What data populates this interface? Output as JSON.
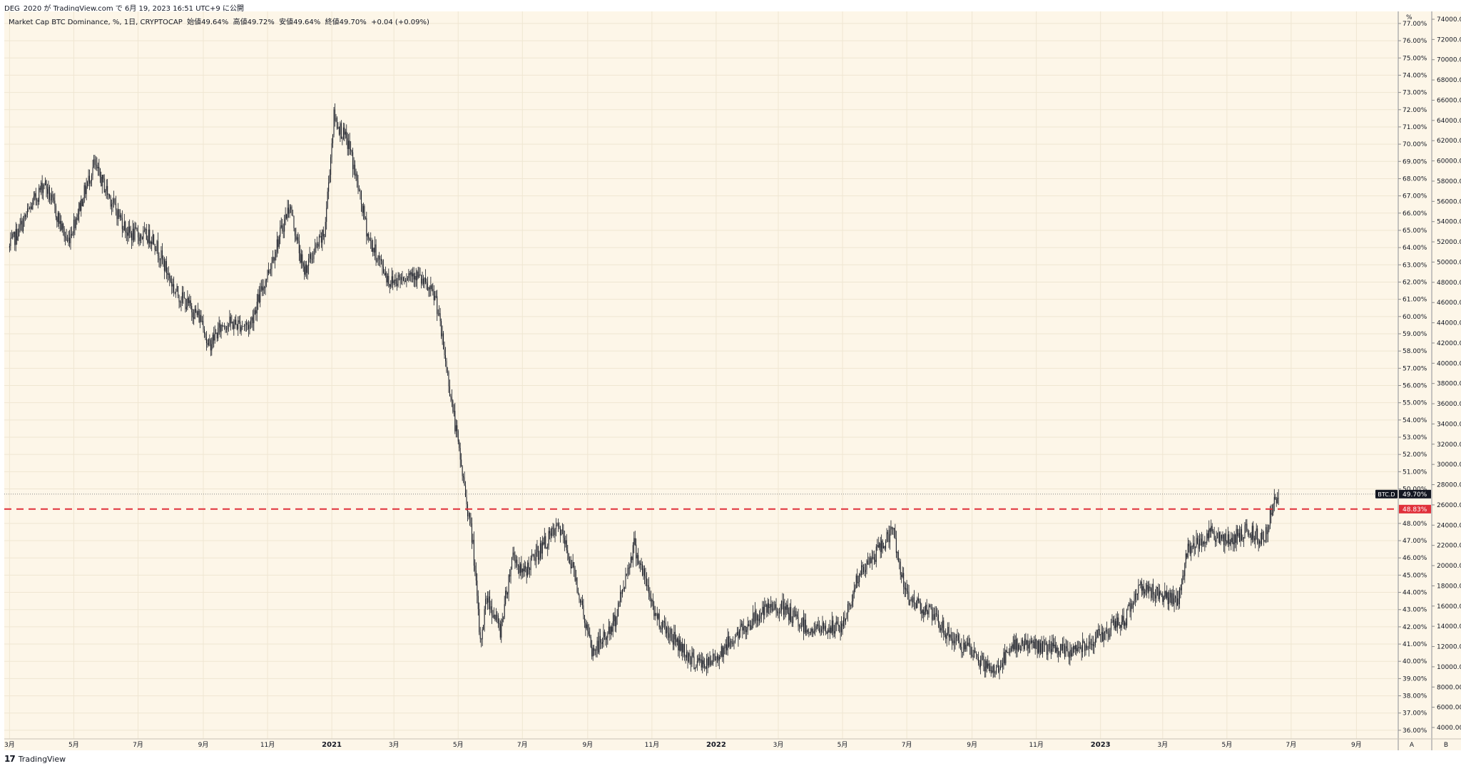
{
  "publisher_line": "DEG_2020 が TradingView.com で 6月 19, 2023 16:51 UTC+9 に公開",
  "legend": {
    "title": "Market Cap BTC Dominance, %, 1日, CRYPTOCAP",
    "open": "始値49.64%",
    "high": "高値49.72%",
    "low": "安値49.64%",
    "close": "終値49.70%",
    "change": "+0.04 (+0.09%)"
  },
  "footer": {
    "logo": "17",
    "brand": "TradingView"
  },
  "price_scale": {
    "unit": "%",
    "ticks": [
      "77.00%",
      "76.00%",
      "75.00%",
      "74.00%",
      "73.00%",
      "72.00%",
      "71.00%",
      "70.00%",
      "69.00%",
      "68.00%",
      "67.00%",
      "66.00%",
      "65.00%",
      "64.00%",
      "63.00%",
      "62.00%",
      "61.00%",
      "60.00%",
      "59.00%",
      "58.00%",
      "57.00%",
      "56.00%",
      "55.00%",
      "54.00%",
      "53.00%",
      "52.00%",
      "51.00%",
      "50.00%",
      "48.00%",
      "47.00%",
      "46.00%",
      "45.00%",
      "44.00%",
      "43.00%",
      "42.00%",
      "41.00%",
      "40.00%",
      "39.00%",
      "38.00%",
      "37.00%",
      "36.00%"
    ],
    "last_label": "49.70%",
    "last_tag": "BTC.D",
    "line_label": "48.83%",
    "mode_button": "A"
  },
  "second_scale": {
    "ticks": [
      "74000.00",
      "72000.00",
      "70000.00",
      "68000.00",
      "66000.00",
      "64000.00",
      "62000.00",
      "60000.00",
      "58000.00",
      "56000.00",
      "54000.00",
      "52000.00",
      "50000.00",
      "48000.00",
      "46000.00",
      "44000.00",
      "42000.00",
      "40000.00",
      "38000.00",
      "36000.00",
      "34000.00",
      "32000.00",
      "30000.00",
      "28000.00",
      "26000.00",
      "24000.00",
      "22000.00",
      "20000.00",
      "18000.00",
      "16000.00",
      "14000.00",
      "12000.00",
      "10000.00",
      "8000.00",
      "6000.00",
      "4000.00"
    ],
    "mode_button": "B"
  },
  "time_axis": {
    "labels": [
      "3月",
      "5月",
      "7月",
      "9月",
      "11月",
      "2021",
      "3月",
      "5月",
      "7月",
      "9月",
      "11月",
      "2022",
      "3月",
      "5月",
      "7月",
      "9月",
      "11月",
      "2023",
      "3月",
      "5月",
      "7月",
      "9月"
    ]
  },
  "colors": {
    "background": "#fdf6e8",
    "candle": "#131722",
    "support_line": "#e0303a",
    "last_price_box": "#131722"
  },
  "chart_data": {
    "type": "candlestick",
    "symbol": "BTC.D",
    "title": "Market Cap BTC Dominance, %, 1日, CRYPTOCAP",
    "x_range": [
      "2020-02-25",
      "2023-10-10"
    ],
    "y_range": [
      35.5,
      77.7
    ],
    "horizontal_line": {
      "value": 48.83,
      "style": "dashed",
      "color": "#e0303a"
    },
    "last_value": 49.7,
    "path_keypoints": [
      [
        "2020-03-01",
        64.0
      ],
      [
        "2020-04-03",
        67.8
      ],
      [
        "2020-04-25",
        64.3
      ],
      [
        "2020-05-20",
        68.8
      ],
      [
        "2020-06-10",
        66.2
      ],
      [
        "2020-06-22",
        64.8
      ],
      [
        "2020-07-15",
        64.6
      ],
      [
        "2020-08-05",
        61.5
      ],
      [
        "2020-09-01",
        59.7
      ],
      [
        "2020-09-05",
        58.2
      ],
      [
        "2020-09-20",
        59.6
      ],
      [
        "2020-10-15",
        59.5
      ],
      [
        "2020-11-01",
        62.5
      ],
      [
        "2020-11-22",
        66.5
      ],
      [
        "2020-12-05",
        62.6
      ],
      [
        "2020-12-25",
        64.8
      ],
      [
        "2021-01-03",
        71.6
      ],
      [
        "2021-01-18",
        69.8
      ],
      [
        "2021-02-05",
        64.5
      ],
      [
        "2021-02-25",
        62.0
      ],
      [
        "2021-03-20",
        62.6
      ],
      [
        "2021-04-10",
        61.0
      ],
      [
        "2021-04-25",
        55.0
      ],
      [
        "2021-05-15",
        46.8
      ],
      [
        "2021-05-22",
        41.0
      ],
      [
        "2021-05-28",
        43.8
      ],
      [
        "2021-06-10",
        41.8
      ],
      [
        "2021-06-22",
        46.3
      ],
      [
        "2021-07-01",
        45.0
      ],
      [
        "2021-07-20",
        46.7
      ],
      [
        "2021-08-05",
        47.8
      ],
      [
        "2021-08-20",
        45.0
      ],
      [
        "2021-09-05",
        40.5
      ],
      [
        "2021-09-25",
        42.0
      ],
      [
        "2021-10-15",
        46.8
      ],
      [
        "2021-11-05",
        42.6
      ],
      [
        "2021-12-10",
        40.0
      ],
      [
        "2021-12-25",
        39.8
      ],
      [
        "2022-01-15",
        41.2
      ],
      [
        "2022-02-10",
        42.7
      ],
      [
        "2022-03-01",
        43.2
      ],
      [
        "2022-04-01",
        41.8
      ],
      [
        "2022-05-01",
        42.0
      ],
      [
        "2022-05-15",
        44.8
      ],
      [
        "2022-06-18",
        47.6
      ],
      [
        "2022-06-30",
        43.8
      ],
      [
        "2022-07-20",
        43.0
      ],
      [
        "2022-08-10",
        41.5
      ],
      [
        "2022-09-10",
        40.0
      ],
      [
        "2022-09-20",
        39.3
      ],
      [
        "2022-10-15",
        41.1
      ],
      [
        "2022-11-08",
        40.8
      ],
      [
        "2022-12-01",
        40.5
      ],
      [
        "2023-01-01",
        41.5
      ],
      [
        "2023-01-25",
        42.5
      ],
      [
        "2023-02-05",
        44.3
      ],
      [
        "2023-03-01",
        43.9
      ],
      [
        "2023-03-15",
        43.3
      ],
      [
        "2023-03-25",
        46.5
      ],
      [
        "2023-04-15",
        47.5
      ],
      [
        "2023-05-01",
        46.9
      ],
      [
        "2023-05-20",
        47.6
      ],
      [
        "2023-06-05",
        47.1
      ],
      [
        "2023-06-12",
        48.7
      ],
      [
        "2023-06-19",
        49.7
      ]
    ]
  }
}
